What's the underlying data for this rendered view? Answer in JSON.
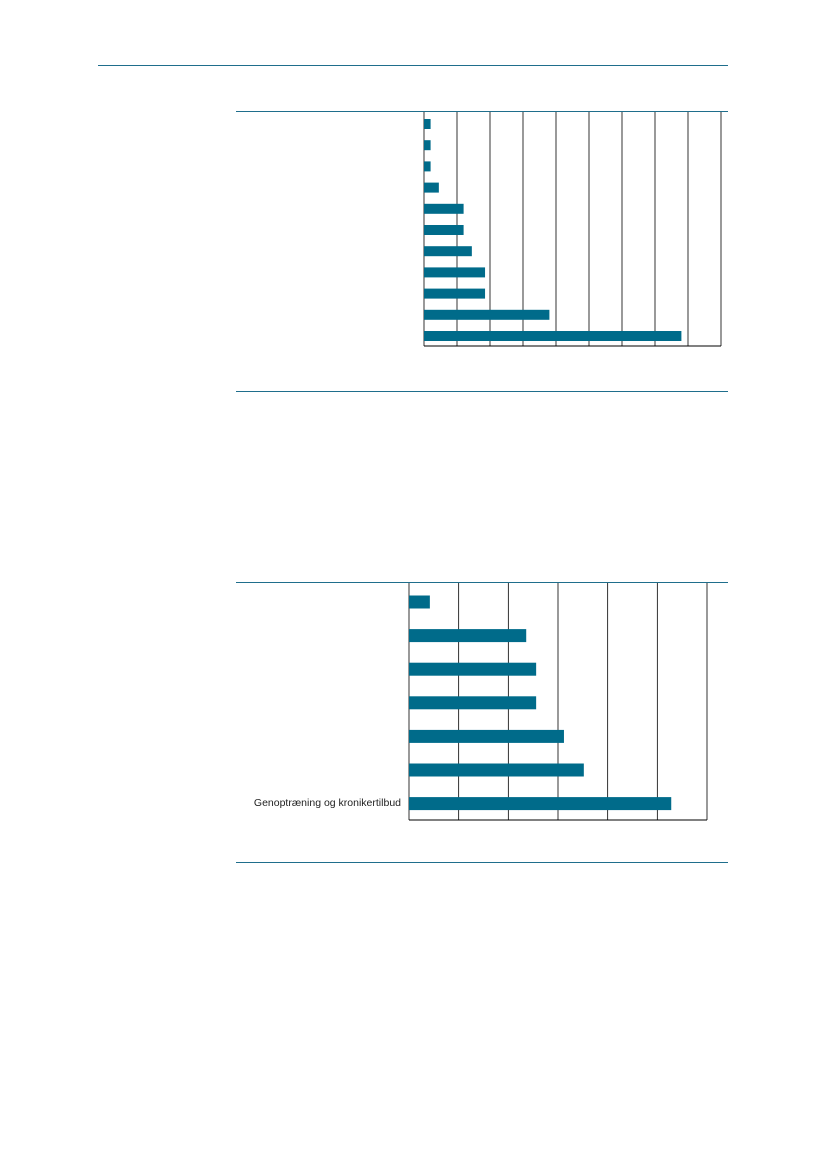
{
  "colors": {
    "bar": "#006b8a",
    "rule": "#1f6e8c",
    "grid": "#000000"
  },
  "chart_data": [
    {
      "type": "bar",
      "orientation": "horizontal",
      "categories": [
        "",
        "",
        "",
        "",
        "",
        "",
        "",
        "",
        "",
        "",
        ""
      ],
      "values": [
        2,
        2,
        2,
        4.5,
        12,
        12,
        14.5,
        18.5,
        18.5,
        38,
        78
      ],
      "xlim": [
        0,
        90
      ],
      "xticks": [
        0,
        10,
        20,
        30,
        40,
        50,
        60,
        70,
        80,
        90
      ],
      "grid": true,
      "title": "",
      "xlabel": "",
      "ylabel": ""
    },
    {
      "type": "bar",
      "orientation": "horizontal",
      "categories": [
        "",
        "",
        "",
        "",
        "",
        "",
        "Genoptræning og kronikertilbud"
      ],
      "values": [
        2.1,
        11.8,
        12.8,
        12.8,
        15.6,
        17.6,
        26.4
      ],
      "xlim": [
        0,
        30
      ],
      "xticks": [
        0,
        5,
        10,
        15,
        20,
        25,
        30
      ],
      "grid": true,
      "title": "",
      "xlabel": "",
      "ylabel": ""
    }
  ]
}
